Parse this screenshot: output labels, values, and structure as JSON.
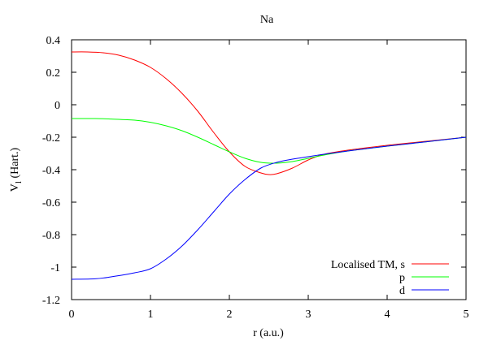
{
  "chart_data": {
    "type": "line",
    "title": "Na",
    "xlabel": "r (a.u.)",
    "ylabel_main": "V",
    "ylabel_sub": "l",
    "ylabel_rest": " (Hart.)",
    "xlim": [
      0,
      5
    ],
    "ylim": [
      -1.2,
      0.4
    ],
    "xticks": [
      "0",
      "1",
      "2",
      "3",
      "4",
      "5"
    ],
    "yticks": [
      "0.4",
      "0.2",
      "0",
      "-0.2",
      "-0.4",
      "-0.6",
      "-0.8",
      "-1",
      "-1.2"
    ],
    "grid": false,
    "legend_position": "bottom-right",
    "series": [
      {
        "name": "Localised TM, s",
        "color": "#ff0000",
        "x": [
          0,
          0.2,
          0.4,
          0.6,
          0.8,
          1.0,
          1.2,
          1.4,
          1.6,
          1.8,
          2.0,
          2.2,
          2.4,
          2.5,
          2.6,
          2.8,
          3.0,
          3.2,
          3.5,
          4.0,
          4.5,
          5.0
        ],
        "y": [
          0.325,
          0.325,
          0.32,
          0.305,
          0.275,
          0.23,
          0.16,
          0.07,
          -0.04,
          -0.17,
          -0.29,
          -0.38,
          -0.42,
          -0.43,
          -0.425,
          -0.39,
          -0.34,
          -0.305,
          -0.28,
          -0.25,
          -0.225,
          -0.2
        ]
      },
      {
        "name": "p",
        "color": "#00ff00",
        "x": [
          0,
          0.3,
          0.5,
          0.8,
          1.0,
          1.2,
          1.4,
          1.6,
          1.8,
          2.0,
          2.2,
          2.4,
          2.6,
          2.8,
          3.0,
          3.2,
          3.5,
          4.0,
          4.5,
          5.0
        ],
        "y": [
          -0.085,
          -0.085,
          -0.088,
          -0.095,
          -0.108,
          -0.13,
          -0.16,
          -0.2,
          -0.245,
          -0.29,
          -0.33,
          -0.355,
          -0.36,
          -0.35,
          -0.33,
          -0.31,
          -0.285,
          -0.255,
          -0.228,
          -0.2
        ]
      },
      {
        "name": "d",
        "color": "#0000ff",
        "x": [
          0,
          0.3,
          0.5,
          0.8,
          1.0,
          1.2,
          1.4,
          1.6,
          1.8,
          2.0,
          2.2,
          2.4,
          2.6,
          2.8,
          3.0,
          3.2,
          3.5,
          4.0,
          4.5,
          5.0
        ],
        "y": [
          -1.075,
          -1.072,
          -1.06,
          -1.035,
          -1.01,
          -0.95,
          -0.87,
          -0.77,
          -0.66,
          -0.55,
          -0.46,
          -0.39,
          -0.355,
          -0.335,
          -0.32,
          -0.305,
          -0.285,
          -0.255,
          -0.228,
          -0.2
        ]
      }
    ]
  }
}
